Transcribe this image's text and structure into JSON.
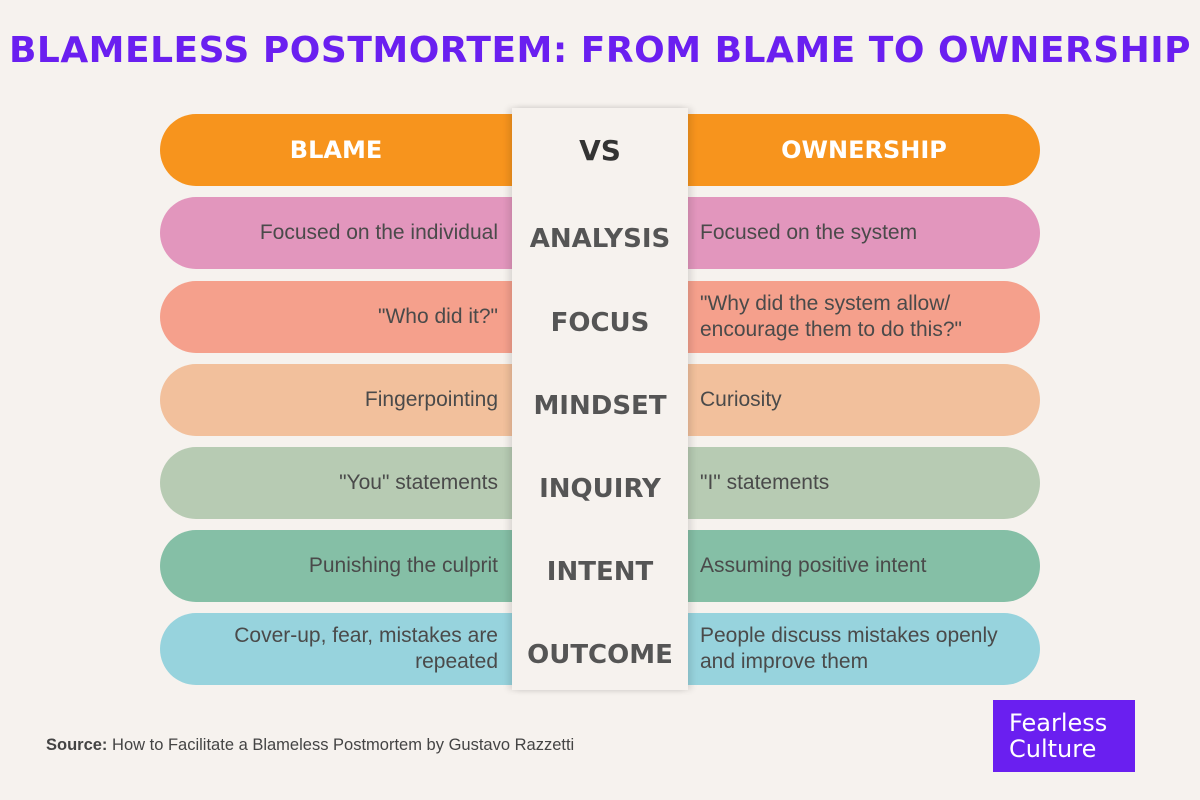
{
  "title": "BLAMELESS POSTMORTEM: FROM BLAME TO OWNERSHIP",
  "header": {
    "left": "BLAME",
    "middle": "VS",
    "right": "OWNERSHIP",
    "color": "#f7941d"
  },
  "rows": [
    {
      "category": "ANALYSIS",
      "blame": "Focused on the individual",
      "ownership": "Focused on the system",
      "color": "#e296bd"
    },
    {
      "category": "FOCUS",
      "blame": "\"Who did it?\"",
      "ownership": "\"Why did the system allow/ encourage them to do this?\"",
      "color": "#f5a08c"
    },
    {
      "category": "MINDSET",
      "blame": "Fingerpointing",
      "ownership": "Curiosity",
      "color": "#f2c09c"
    },
    {
      "category": "INQUIRY",
      "blame": "\"You\" statements",
      "ownership": "\"I\" statements",
      "color": "#b7cbb3"
    },
    {
      "category": "INTENT",
      "blame": "Punishing the culprit",
      "ownership": "Assuming positive intent",
      "color": "#85bfa6"
    },
    {
      "category": "OUTCOME",
      "blame": "Cover-up, fear, mistakes are repeated",
      "ownership": "People discuss mistakes openly and improve them",
      "color": "#97d3dd"
    }
  ],
  "source": {
    "label": "Source:",
    "text": "How to Facilitate a Blameless Postmortem by Gustavo Razzetti"
  },
  "logo": {
    "line1": "Fearless",
    "line2": "Culture",
    "color": "#6a1ff0"
  }
}
